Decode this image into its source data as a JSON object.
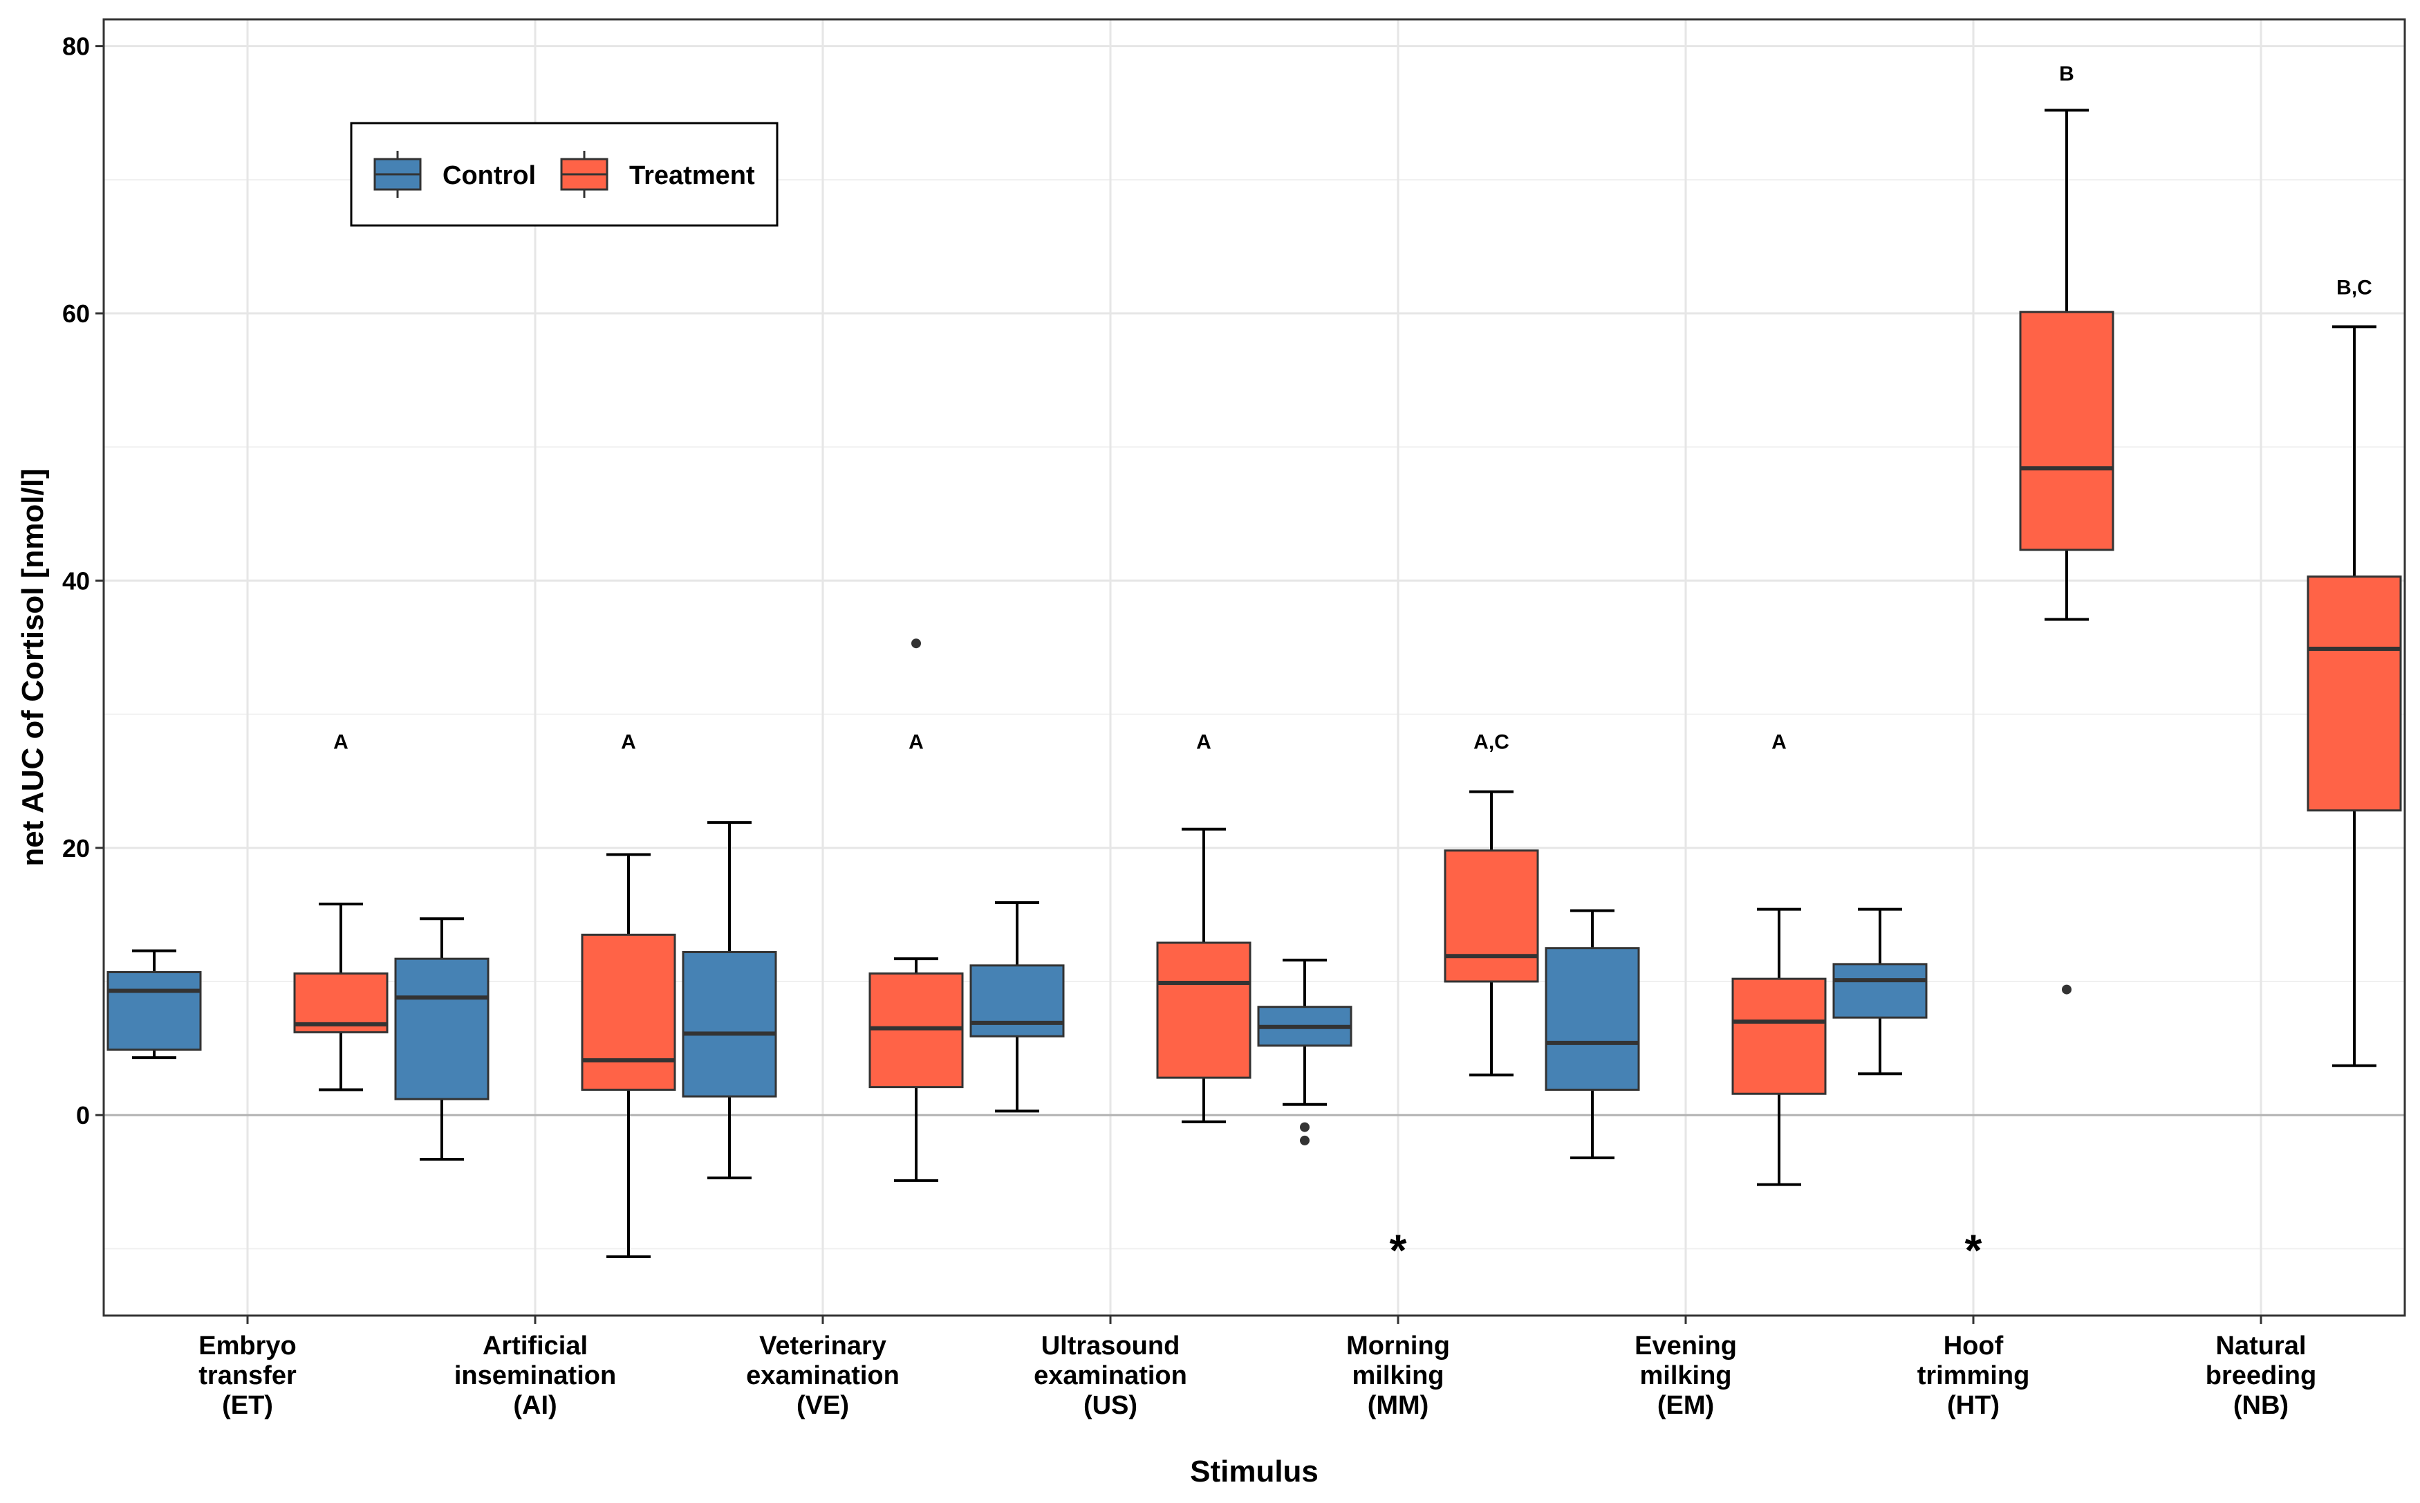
{
  "chart_data": {
    "type": "boxplot",
    "title": "",
    "xlabel": "Stimulus",
    "ylabel": "net AUC of Cortisol [nmol/l]",
    "ylim": [
      -15,
      82
    ],
    "yticks": [
      0,
      20,
      40,
      60,
      80
    ],
    "grid": true,
    "legend": {
      "position": "top-left",
      "entries": [
        {
          "name": "Control",
          "color": "#4682B4"
        },
        {
          "name": "Treatment",
          "color": "#FF6347"
        }
      ]
    },
    "categories": [
      {
        "lines": [
          "Embryo",
          "transfer",
          "(ET)"
        ]
      },
      {
        "lines": [
          "Artificial",
          "insemination",
          "(AI)"
        ]
      },
      {
        "lines": [
          "Veterinary",
          "examination",
          "(VE)"
        ]
      },
      {
        "lines": [
          "Ultrasound",
          "examination",
          "(US)"
        ]
      },
      {
        "lines": [
          "Morning",
          "milking",
          "(MM)"
        ]
      },
      {
        "lines": [
          "Evening",
          "milking",
          "(EM)"
        ]
      },
      {
        "lines": [
          "Hoof",
          "trimming",
          "(HT)"
        ]
      },
      {
        "lines": [
          "Natural",
          "breeding",
          "(NB)"
        ]
      }
    ],
    "series": [
      {
        "name": "Control",
        "color": "#4682B4",
        "boxes": [
          {
            "cat": 0,
            "low": 4.3,
            "q1": 4.9,
            "median": 9.3,
            "q3": 10.7,
            "high": 12.3,
            "outliers": []
          },
          {
            "cat": 1,
            "low": -3.3,
            "q1": 1.2,
            "median": 8.8,
            "q3": 11.7,
            "high": 14.7,
            "outliers": []
          },
          {
            "cat": 2,
            "low": -4.7,
            "q1": 1.4,
            "median": 6.1,
            "q3": 12.2,
            "high": 21.9,
            "outliers": []
          },
          {
            "cat": 3,
            "low": 0.3,
            "q1": 5.9,
            "median": 6.9,
            "q3": 11.2,
            "high": 15.9,
            "outliers": []
          },
          {
            "cat": 4,
            "low": 0.8,
            "q1": 5.2,
            "median": 6.6,
            "q3": 8.1,
            "high": 11.6,
            "outliers": [
              -0.9,
              -1.9
            ]
          },
          {
            "cat": 5,
            "low": -3.2,
            "q1": 1.9,
            "median": 5.4,
            "q3": 12.5,
            "high": 15.3,
            "outliers": []
          },
          {
            "cat": 6,
            "low": 3.1,
            "q1": 7.3,
            "median": 10.1,
            "q3": 11.3,
            "high": 15.4,
            "outliers": []
          }
        ]
      },
      {
        "name": "Treatment",
        "color": "#FF6347",
        "boxes": [
          {
            "cat": 0,
            "low": 1.9,
            "q1": 6.2,
            "median": 6.8,
            "q3": 10.6,
            "high": 15.8,
            "outliers": []
          },
          {
            "cat": 1,
            "low": -10.6,
            "q1": 1.9,
            "median": 4.1,
            "q3": 13.5,
            "high": 19.5,
            "outliers": []
          },
          {
            "cat": 2,
            "low": -4.9,
            "q1": 2.1,
            "median": 6.5,
            "q3": 10.6,
            "high": 11.7,
            "outliers": [
              35.3
            ]
          },
          {
            "cat": 3,
            "low": -0.5,
            "q1": 2.8,
            "median": 9.9,
            "q3": 12.9,
            "high": 21.4,
            "outliers": []
          },
          {
            "cat": 4,
            "low": 3.0,
            "q1": 10.0,
            "median": 11.9,
            "q3": 19.8,
            "high": 24.2,
            "outliers": []
          },
          {
            "cat": 5,
            "low": -5.2,
            "q1": 1.6,
            "median": 7.0,
            "q3": 10.2,
            "high": 15.4,
            "outliers": []
          },
          {
            "cat": 6,
            "low": 37.1,
            "q1": 42.3,
            "median": 48.4,
            "q3": 60.1,
            "high": 75.2,
            "outliers": []
          },
          {
            "cat": 7,
            "low": 3.7,
            "q1": 22.8,
            "median": 34.9,
            "q3": 40.3,
            "high": 59.0,
            "outliers": []
          }
        ]
      }
    ],
    "extra_points": [
      {
        "cat": 6,
        "group": "Treatment",
        "y": 9.4
      }
    ],
    "significance_labels": [
      {
        "cat": 0,
        "text": "A",
        "y": 28
      },
      {
        "cat": 1,
        "text": "A",
        "y": 28
      },
      {
        "cat": 2,
        "text": "A",
        "y": 28
      },
      {
        "cat": 3,
        "text": "A",
        "y": 28
      },
      {
        "cat": 4,
        "text": "A,C",
        "y": 28
      },
      {
        "cat": 5,
        "text": "A",
        "y": 28
      },
      {
        "cat": 6,
        "text": "B",
        "y": 78
      },
      {
        "cat": 7,
        "text": "B,C",
        "y": 62
      }
    ],
    "stars": [
      {
        "cat": 4,
        "text": "*",
        "y": -9.5
      },
      {
        "cat": 6,
        "text": "*",
        "y": -9.5
      }
    ]
  }
}
